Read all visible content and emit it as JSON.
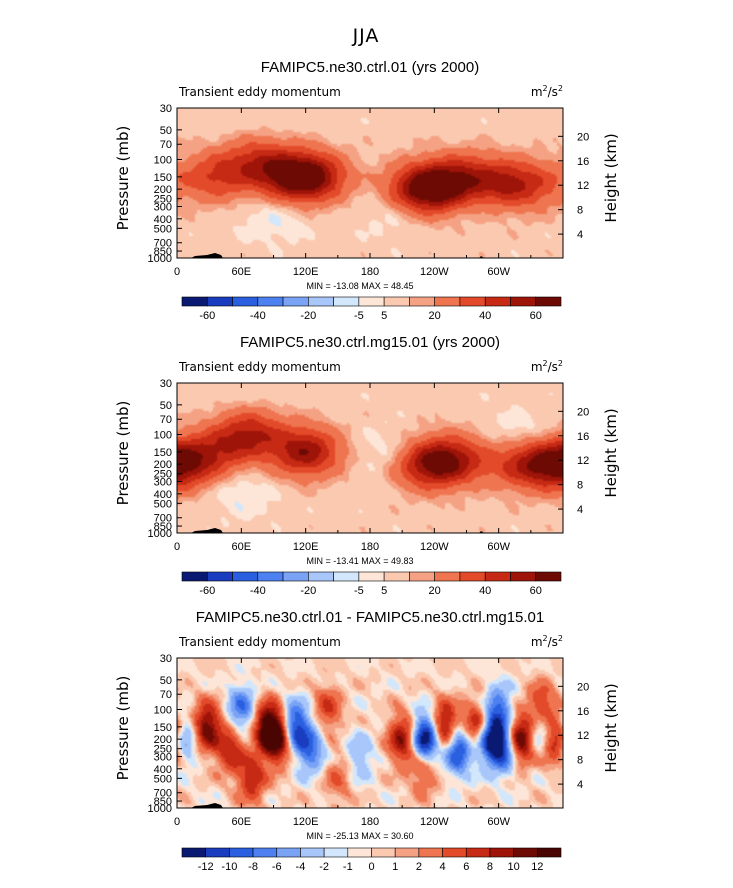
{
  "figure_title": "JJA",
  "chart_data": [
    {
      "type": "heatmap",
      "title": "FAMIPC5.ne30.ctrl.01 (yrs 2000)",
      "left_string": "Transient eddy momentum",
      "units": "m",
      "units_sup1": "2",
      "units_mid": "/s",
      "units_sup2": "2",
      "ylabel": "Pressure (mb)",
      "ylabel2": "Height (km)",
      "x_ticks": [
        "0",
        "60E",
        "120E",
        "180",
        "120W",
        "60W"
      ],
      "y_ticks": [
        "30",
        "50",
        "70",
        "100",
        "150",
        "200",
        "250",
        "300",
        "400",
        "500",
        "700",
        "850",
        "1000"
      ],
      "y2_ticks": [
        "20",
        "16",
        "12",
        "8",
        "4"
      ],
      "min_max": "MIN = -13.08   MAX =   48.45",
      "colorbar_labels": [
        "-60",
        "-40",
        "-20",
        "-5",
        "5",
        "20",
        "40",
        "60"
      ],
      "colorbar_colors": [
        "#0a1a73",
        "#1a3dbf",
        "#2a5fe0",
        "#4d80f0",
        "#7aa3f5",
        "#a8c6f9",
        "#d2e6fc",
        "#fde6d8",
        "#fac9b0",
        "#f5a183",
        "#ee7550",
        "#e34a2a",
        "#c62a14",
        "#9e1409",
        "#6e0a04"
      ],
      "features": [
        {
          "lon": 35,
          "p": 150,
          "val": 26
        },
        {
          "lon": 75,
          "p": 110,
          "val": 30
        },
        {
          "lon": 110,
          "p": 150,
          "val": 45
        },
        {
          "lon": 130,
          "p": 150,
          "val": 30
        },
        {
          "lon": 225,
          "p": 200,
          "val": 34
        },
        {
          "lon": 245,
          "p": 190,
          "val": 40
        },
        {
          "lon": 270,
          "p": 150,
          "val": 24
        },
        {
          "lon": 300,
          "p": 180,
          "val": 30
        },
        {
          "lon": 330,
          "p": 180,
          "val": 22
        },
        {
          "lon": 90,
          "p": 400,
          "val": -8
        },
        {
          "lon": 200,
          "p": 350,
          "val": -6
        },
        {
          "lon": 280,
          "p": 220,
          "val": -8
        }
      ]
    },
    {
      "type": "heatmap",
      "title": "FAMIPC5.ne30.ctrl.mg15.01 (yrs 2000)",
      "left_string": "Transient eddy momentum",
      "units": "m",
      "units_sup1": "2",
      "units_mid": "/s",
      "units_sup2": "2",
      "ylabel": "Pressure (mb)",
      "ylabel2": "Height (km)",
      "x_ticks": [
        "0",
        "60E",
        "120E",
        "180",
        "120W",
        "60W"
      ],
      "y_ticks": [
        "30",
        "50",
        "70",
        "100",
        "150",
        "200",
        "250",
        "300",
        "400",
        "500",
        "700",
        "850",
        "1000"
      ],
      "y2_ticks": [
        "20",
        "16",
        "12",
        "8",
        "4"
      ],
      "min_max": "MIN = -13.41   MAX =   49.83",
      "colorbar_labels": [
        "-60",
        "-40",
        "-20",
        "-5",
        "5",
        "20",
        "40",
        "60"
      ],
      "colorbar_colors": [
        "#0a1a73",
        "#1a3dbf",
        "#2a5fe0",
        "#4d80f0",
        "#7aa3f5",
        "#a8c6f9",
        "#d2e6fc",
        "#fde6d8",
        "#fac9b0",
        "#f5a183",
        "#ee7550",
        "#e34a2a",
        "#c62a14",
        "#9e1409",
        "#6e0a04"
      ],
      "features": [
        {
          "lon": 5,
          "p": 200,
          "val": 28
        },
        {
          "lon": 35,
          "p": 150,
          "val": 24
        },
        {
          "lon": 68,
          "p": 100,
          "val": 36
        },
        {
          "lon": 120,
          "p": 150,
          "val": 45
        },
        {
          "lon": 235,
          "p": 200,
          "val": 42
        },
        {
          "lon": 260,
          "p": 180,
          "val": 30
        },
        {
          "lon": 320,
          "p": 200,
          "val": 26
        },
        {
          "lon": 350,
          "p": 200,
          "val": 30
        },
        {
          "lon": 200,
          "p": 150,
          "val": -8
        },
        {
          "lon": 320,
          "p": 100,
          "val": -8
        },
        {
          "lon": 60,
          "p": 400,
          "val": -8
        }
      ]
    },
    {
      "type": "heatmap",
      "title": "FAMIPC5.ne30.ctrl.01 - FAMIPC5.ne30.ctrl.mg15.01",
      "left_string": "Transient eddy momentum",
      "units": "m",
      "units_sup1": "2",
      "units_mid": "/s",
      "units_sup2": "2",
      "ylabel": "Pressure (mb)",
      "ylabel2": "Height (km)",
      "x_ticks": [
        "0",
        "60E",
        "120E",
        "180",
        "120W",
        "60W"
      ],
      "y_ticks": [
        "30",
        "50",
        "70",
        "100",
        "150",
        "200",
        "250",
        "300",
        "400",
        "500",
        "700",
        "850",
        "1000"
      ],
      "y2_ticks": [
        "20",
        "16",
        "12",
        "8",
        "4"
      ],
      "min_max": "MIN = -25.13   MAX =   30.60",
      "colorbar_labels": [
        "-12",
        "-10",
        "-8",
        "-6",
        "-4",
        "-2",
        "-1",
        "0",
        "1",
        "2",
        "4",
        "6",
        "8",
        "10",
        "12"
      ],
      "colorbar_colors": [
        "#0a1a73",
        "#1a3dbf",
        "#2a5fe0",
        "#4d80f0",
        "#7aa3f5",
        "#a8c6f9",
        "#d2e6fc",
        "#fde6d8",
        "#fac9b0",
        "#f5a183",
        "#ee7550",
        "#e34a2a",
        "#c62a14",
        "#9e1409",
        "#6e0a04",
        "#4a0502"
      ],
      "features": [
        {
          "lon": 28,
          "p": 150,
          "val": 12
        },
        {
          "lon": 8,
          "p": 200,
          "val": -6
        },
        {
          "lon": 50,
          "p": 250,
          "val": 8
        },
        {
          "lon": 60,
          "p": 100,
          "val": -8
        },
        {
          "lon": 85,
          "p": 150,
          "val": 14
        },
        {
          "lon": 95,
          "p": 200,
          "val": 12
        },
        {
          "lon": 110,
          "p": 150,
          "val": -12
        },
        {
          "lon": 125,
          "p": 250,
          "val": -8
        },
        {
          "lon": 140,
          "p": 100,
          "val": 6
        },
        {
          "lon": 70,
          "p": 500,
          "val": 8
        },
        {
          "lon": 170,
          "p": 300,
          "val": -4
        },
        {
          "lon": 210,
          "p": 200,
          "val": 10
        },
        {
          "lon": 232,
          "p": 200,
          "val": -16
        },
        {
          "lon": 250,
          "p": 150,
          "val": 12
        },
        {
          "lon": 262,
          "p": 250,
          "val": -12
        },
        {
          "lon": 280,
          "p": 150,
          "val": 10
        },
        {
          "lon": 292,
          "p": 200,
          "val": -14
        },
        {
          "lon": 306,
          "p": 250,
          "val": -10
        },
        {
          "lon": 320,
          "p": 200,
          "val": 14
        },
        {
          "lon": 340,
          "p": 150,
          "val": -10
        },
        {
          "lon": 352,
          "p": 200,
          "val": 10
        },
        {
          "lon": 340,
          "p": 100,
          "val": 10
        },
        {
          "lon": 300,
          "p": 100,
          "val": -8
        },
        {
          "lon": 230,
          "p": 400,
          "val": 6
        },
        {
          "lon": 150,
          "p": 500,
          "val": 4
        }
      ]
    }
  ]
}
